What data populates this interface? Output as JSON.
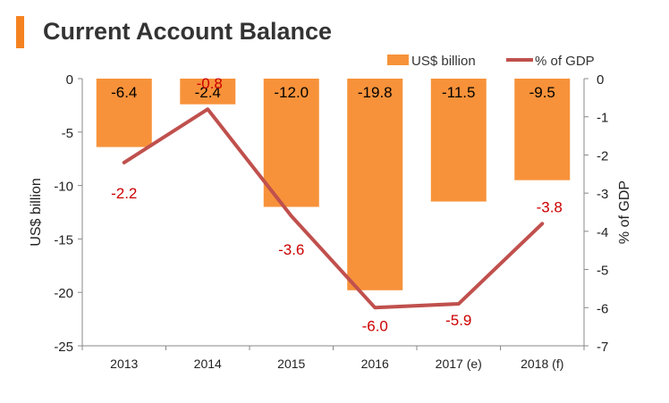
{
  "title": "Current Account Balance",
  "colors": {
    "accent": "#F58220",
    "bar": "#F7923A",
    "line": "#C0504D",
    "line_label": "#CC0000",
    "axis": "#888888"
  },
  "chart_data": {
    "type": "bar",
    "title": "Current Account Balance",
    "categories": [
      "2013",
      "2014",
      "2015",
      "2016",
      "2017 (e)",
      "2018 (f)"
    ],
    "series": [
      {
        "name": "US$ billion",
        "type": "bar",
        "axis": "left",
        "values": [
          -6.4,
          -2.4,
          -12.0,
          -19.8,
          -11.5,
          -9.5
        ],
        "labels": [
          "-6.4",
          "-2.4",
          "-12.0",
          "-19.8",
          "-11.5",
          "-9.5"
        ]
      },
      {
        "name": "% of GDP",
        "type": "line",
        "axis": "right",
        "values": [
          -2.2,
          -0.8,
          -3.6,
          -6.0,
          -5.9,
          -3.8
        ],
        "labels": [
          "-2.2",
          "-0.8",
          "-3.6",
          "-6.0",
          "-5.9",
          "-3.8"
        ]
      }
    ],
    "ylabel": "US$ billion",
    "ylim": [
      -25,
      0
    ],
    "yticks": [
      "0",
      "-5",
      "-10",
      "-15",
      "-20",
      "-25"
    ],
    "y2label": "% of GDP",
    "y2lim": [
      -7,
      0
    ],
    "y2ticks": [
      "0",
      "-1",
      "-2",
      "-3",
      "-4",
      "-5",
      "-6",
      "-7"
    ],
    "legend": "top-right",
    "grid": false
  }
}
